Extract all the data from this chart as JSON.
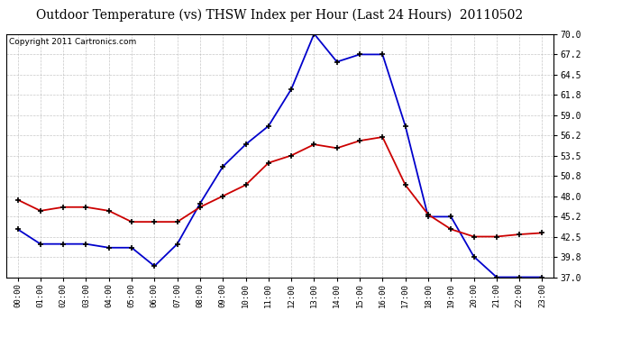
{
  "title": "Outdoor Temperature (vs) THSW Index per Hour (Last 24 Hours)  20110502",
  "copyright": "Copyright 2011 Cartronics.com",
  "hours": [
    "00:00",
    "01:00",
    "02:00",
    "03:00",
    "04:00",
    "05:00",
    "06:00",
    "07:00",
    "08:00",
    "09:00",
    "10:00",
    "11:00",
    "12:00",
    "13:00",
    "14:00",
    "15:00",
    "16:00",
    "17:00",
    "18:00",
    "19:00",
    "20:00",
    "21:00",
    "22:00",
    "23:00"
  ],
  "temp": [
    47.5,
    46.0,
    46.5,
    46.5,
    46.0,
    44.5,
    44.5,
    44.5,
    46.5,
    48.0,
    49.5,
    52.5,
    53.5,
    55.0,
    54.5,
    55.5,
    56.0,
    49.5,
    45.5,
    43.5,
    42.5,
    42.5,
    42.8,
    43.0
  ],
  "thsw": [
    43.5,
    41.5,
    41.5,
    41.5,
    41.0,
    41.0,
    38.5,
    41.5,
    47.0,
    52.0,
    55.0,
    57.5,
    62.5,
    70.0,
    66.2,
    67.2,
    67.2,
    57.5,
    45.2,
    45.2,
    39.8,
    37.0,
    37.0,
    37.0
  ],
  "ylim_min": 37.0,
  "ylim_max": 70.0,
  "yticks": [
    37.0,
    39.8,
    42.5,
    45.2,
    48.0,
    50.8,
    53.5,
    56.2,
    59.0,
    61.8,
    64.5,
    67.2,
    70.0
  ],
  "temp_color": "#cc0000",
  "thsw_color": "#0000cc",
  "bg_color": "#ffffff",
  "grid_color": "#b0b0b0",
  "title_fontsize": 10,
  "copyright_fontsize": 6.5,
  "tick_fontsize": 7,
  "xtick_fontsize": 6.5
}
